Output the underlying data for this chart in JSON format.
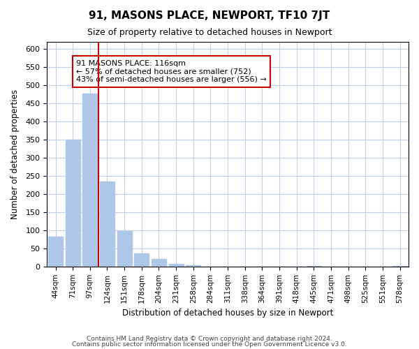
{
  "title": "91, MASONS PLACE, NEWPORT, TF10 7JT",
  "subtitle": "Size of property relative to detached houses in Newport",
  "xlabel": "Distribution of detached houses by size in Newport",
  "ylabel": "Number of detached properties",
  "bar_labels": [
    "44sqm",
    "71sqm",
    "97sqm",
    "124sqm",
    "151sqm",
    "178sqm",
    "204sqm",
    "231sqm",
    "258sqm",
    "284sqm",
    "311sqm",
    "338sqm",
    "364sqm",
    "391sqm",
    "418sqm",
    "445sqm",
    "471sqm",
    "498sqm",
    "525sqm",
    "551sqm",
    "578sqm"
  ],
  "bar_values": [
    83,
    350,
    478,
    235,
    97,
    37,
    20,
    8,
    3,
    0,
    0,
    0,
    0,
    0,
    0,
    2,
    0,
    0,
    0,
    0,
    2
  ],
  "bar_color": "#aec6e8",
  "vline_x": 3,
  "vline_color": "#cc0000",
  "annotation_text": "91 MASONS PLACE: 116sqm\n← 57% of detached houses are smaller (752)\n43% of semi-detached houses are larger (556) →",
  "annotation_box_color": "#ffffff",
  "annotation_box_edgecolor": "#cc0000",
  "ylim": [
    0,
    620
  ],
  "yticks": [
    0,
    50,
    100,
    150,
    200,
    250,
    300,
    350,
    400,
    450,
    500,
    550,
    600
  ],
  "footer_line1": "Contains HM Land Registry data © Crown copyright and database right 2024.",
  "footer_line2": "Contains public sector information licensed under the Open Government Licence v3.0.",
  "background_color": "#ffffff",
  "grid_color": "#c0d0e8"
}
